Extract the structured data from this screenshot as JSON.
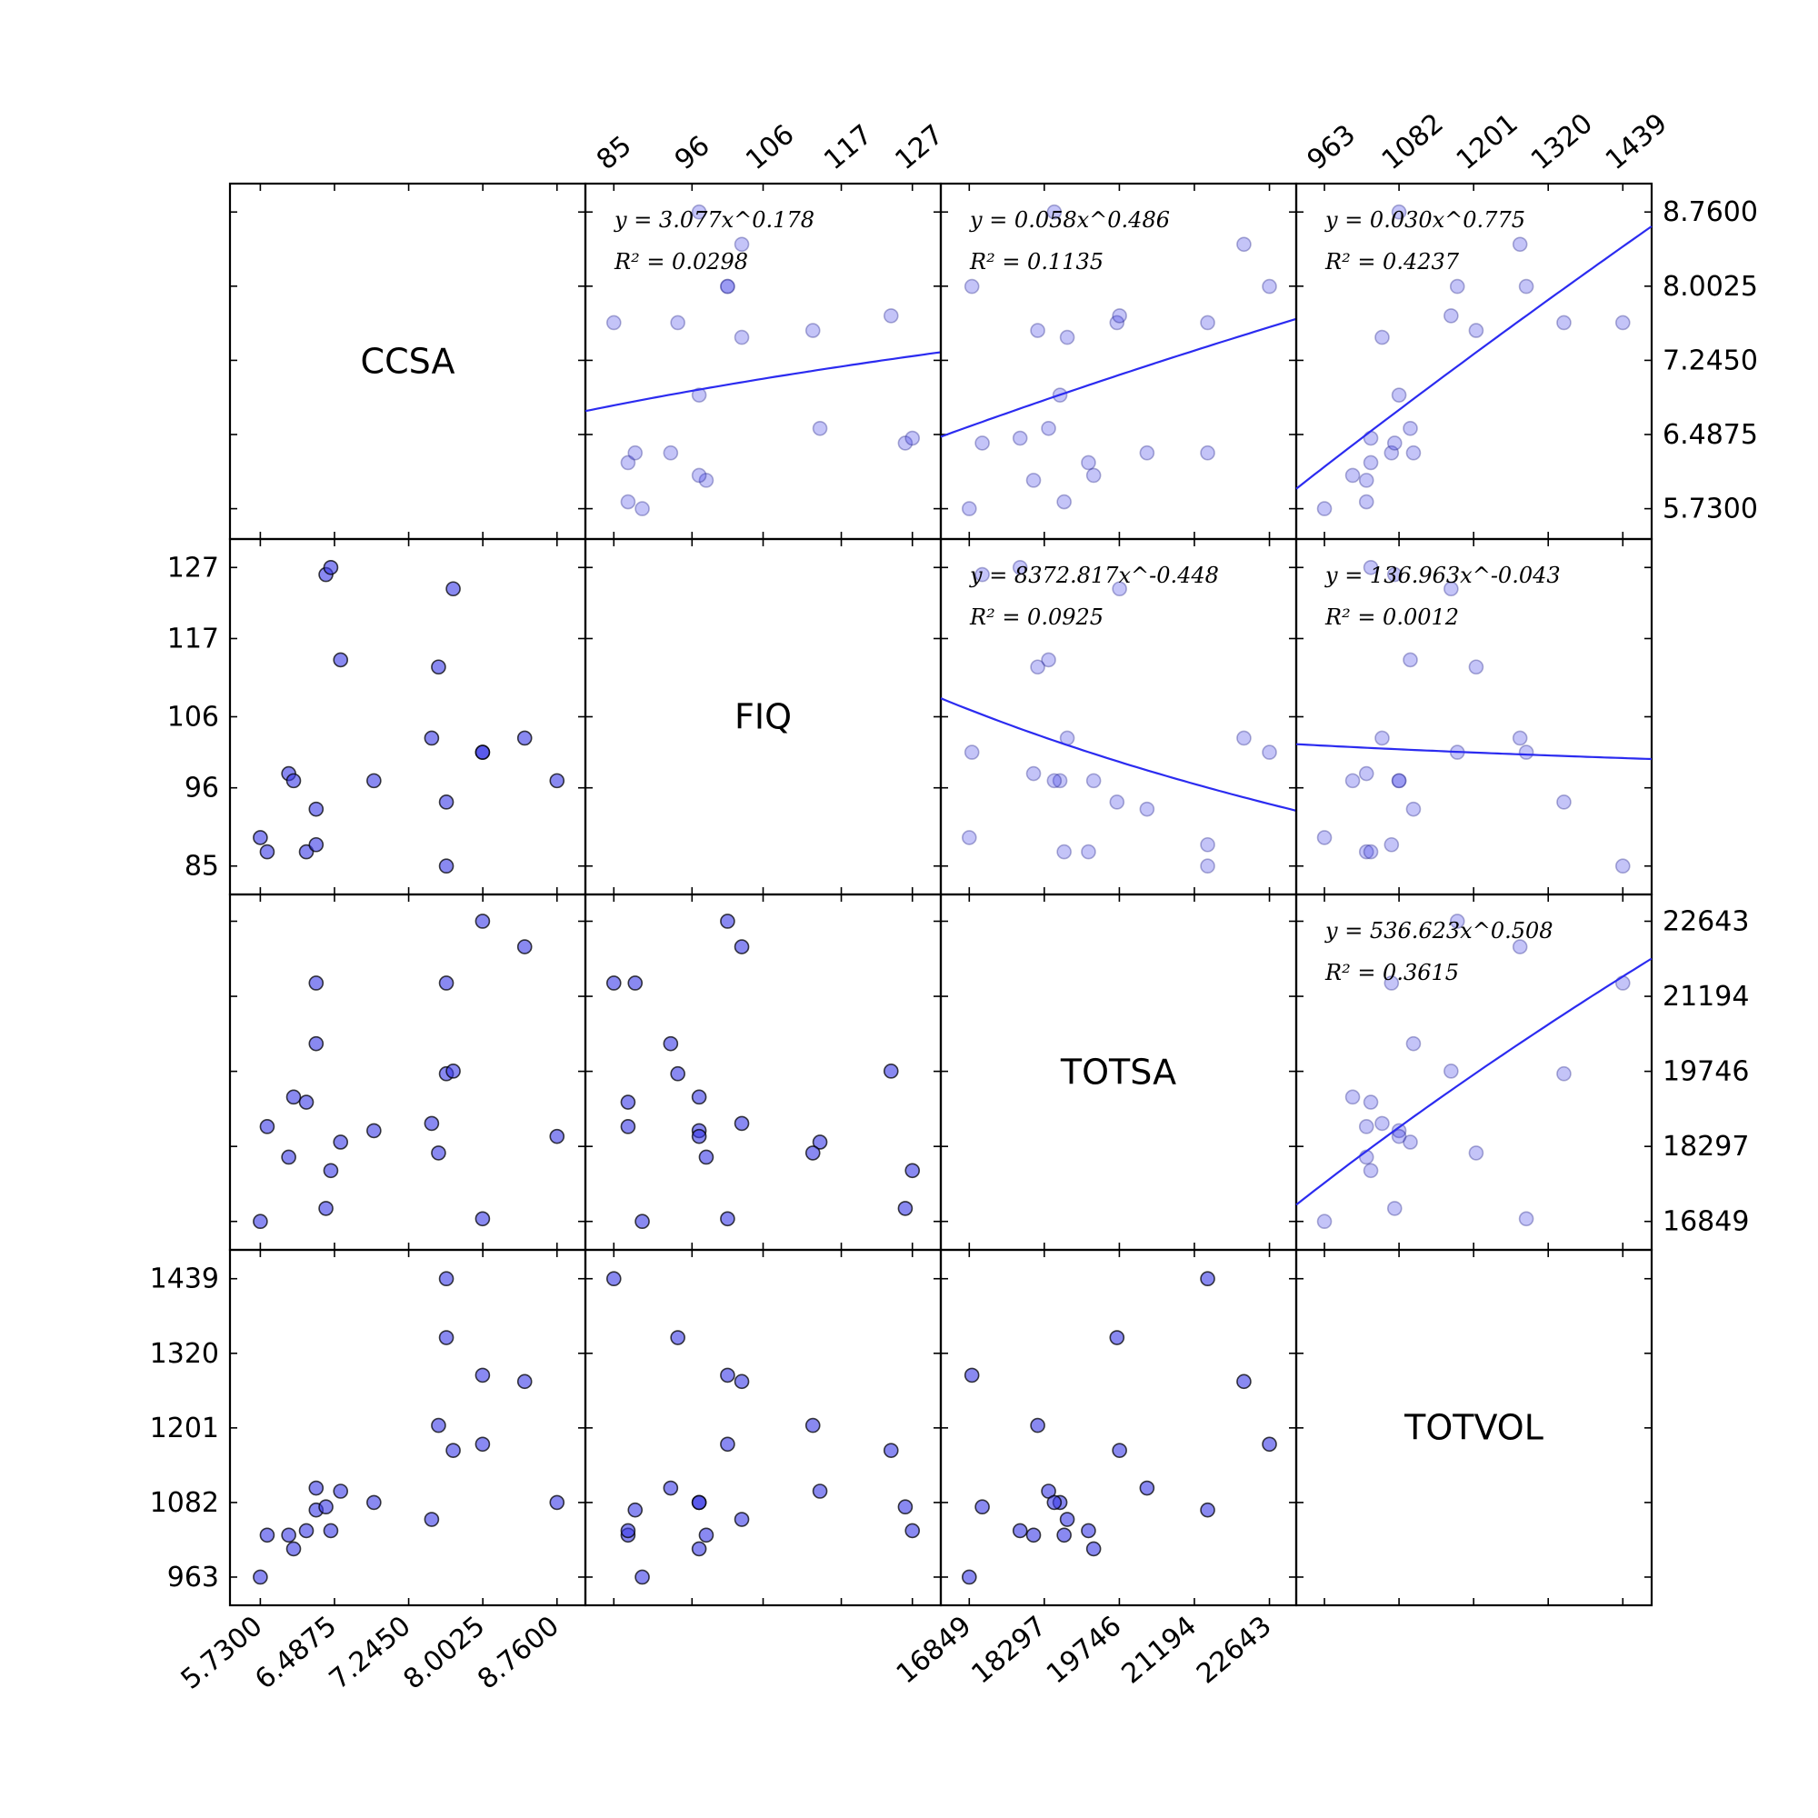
{
  "chart_data": {
    "type": "scatter",
    "variables": [
      "CCSA",
      "FIQ",
      "TOTSA",
      "TOTVOL"
    ],
    "ticks": {
      "CCSA": [
        "5.7300",
        "6.4875",
        "7.2450",
        "8.0025",
        "8.7600"
      ],
      "FIQ": [
        "85",
        "96",
        "106",
        "117",
        "127"
      ],
      "TOTSA": [
        "16849",
        "18297",
        "19746",
        "21194",
        "22643"
      ],
      "TOTVOL": [
        "963",
        "1082",
        "1201",
        "1320",
        "1439"
      ]
    },
    "ranges": {
      "CCSA": [
        5.42,
        9.05
      ],
      "FIQ": [
        81,
        131
      ],
      "TOTSA": [
        16300,
        23160
      ],
      "TOTVOL": [
        918,
        1485
      ]
    },
    "observations": [
      {
        "CCSA": 5.73,
        "FIQ": 89,
        "TOTSA": 16849,
        "TOTVOL": 963
      },
      {
        "CCSA": 5.8,
        "FIQ": 87,
        "TOTSA": 18680,
        "TOTVOL": 1030
      },
      {
        "CCSA": 6.02,
        "FIQ": 98,
        "TOTSA": 18090,
        "TOTVOL": 1030
      },
      {
        "CCSA": 6.07,
        "FIQ": 97,
        "TOTSA": 19250,
        "TOTVOL": 1008
      },
      {
        "CCSA": 6.2,
        "FIQ": 87,
        "TOTSA": 19150,
        "TOTVOL": 1037
      },
      {
        "CCSA": 6.3,
        "FIQ": 93,
        "TOTSA": 20280,
        "TOTVOL": 1105
      },
      {
        "CCSA": 6.3,
        "FIQ": 88,
        "TOTSA": 21450,
        "TOTVOL": 1070
      },
      {
        "CCSA": 6.4,
        "FIQ": 126,
        "TOTSA": 17100,
        "TOTVOL": 1075
      },
      {
        "CCSA": 6.45,
        "FIQ": 127,
        "TOTSA": 17830,
        "TOTVOL": 1037
      },
      {
        "CCSA": 6.55,
        "FIQ": 114,
        "TOTSA": 18380,
        "TOTVOL": 1100
      },
      {
        "CCSA": 6.89,
        "FIQ": 97,
        "TOTSA": 18600,
        "TOTVOL": 1082
      },
      {
        "CCSA": 7.48,
        "FIQ": 103,
        "TOTSA": 18740,
        "TOTVOL": 1055
      },
      {
        "CCSA": 7.55,
        "FIQ": 113,
        "TOTSA": 18170,
        "TOTVOL": 1205
      },
      {
        "CCSA": 7.63,
        "FIQ": 94,
        "TOTSA": 19700,
        "TOTVOL": 1345
      },
      {
        "CCSA": 7.63,
        "FIQ": 85,
        "TOTSA": 21450,
        "TOTVOL": 1439
      },
      {
        "CCSA": 7.7,
        "FIQ": 124,
        "TOTSA": 19750,
        "TOTVOL": 1165
      },
      {
        "CCSA": 8.0,
        "FIQ": 101,
        "TOTSA": 22643,
        "TOTVOL": 1175
      },
      {
        "CCSA": 8.0,
        "FIQ": 101,
        "TOTSA": 16900,
        "TOTVOL": 1285
      },
      {
        "CCSA": 8.43,
        "FIQ": 103,
        "TOTSA": 22150,
        "TOTVOL": 1275
      },
      {
        "CCSA": 8.76,
        "FIQ": 97,
        "TOTSA": 18490,
        "TOTVOL": 1082
      }
    ],
    "fits": [
      {
        "y": "CCSA",
        "x": "FIQ",
        "a": 3.077,
        "b": 0.178,
        "equation": "y = 3.077x^0.178",
        "r2": "R² = 0.0298"
      },
      {
        "y": "CCSA",
        "x": "TOTSA",
        "a": 0.058,
        "b": 0.486,
        "equation": "y = 0.058x^0.486",
        "r2": "R² = 0.1135"
      },
      {
        "y": "CCSA",
        "x": "TOTVOL",
        "a": 0.03,
        "b": 0.775,
        "equation": "y = 0.030x^0.775",
        "r2": "R² = 0.4237"
      },
      {
        "y": "FIQ",
        "x": "TOTSA",
        "a": 8372.817,
        "b": -0.448,
        "equation": "y = 8372.817x^-0.448",
        "r2": "R² = 0.0925"
      },
      {
        "y": "FIQ",
        "x": "TOTVOL",
        "a": 136.963,
        "b": -0.043,
        "equation": "y = 136.963x^-0.043",
        "r2": "R² = 0.0012"
      },
      {
        "y": "TOTSA",
        "x": "TOTVOL",
        "a": 536.623,
        "b": 0.508,
        "equation": "y = 536.623x^0.508",
        "r2": "R² = 0.3615"
      }
    ],
    "colors": {
      "point": "#3b3be8",
      "line": "#2b2bf0"
    },
    "grid": false,
    "legend": "none"
  }
}
